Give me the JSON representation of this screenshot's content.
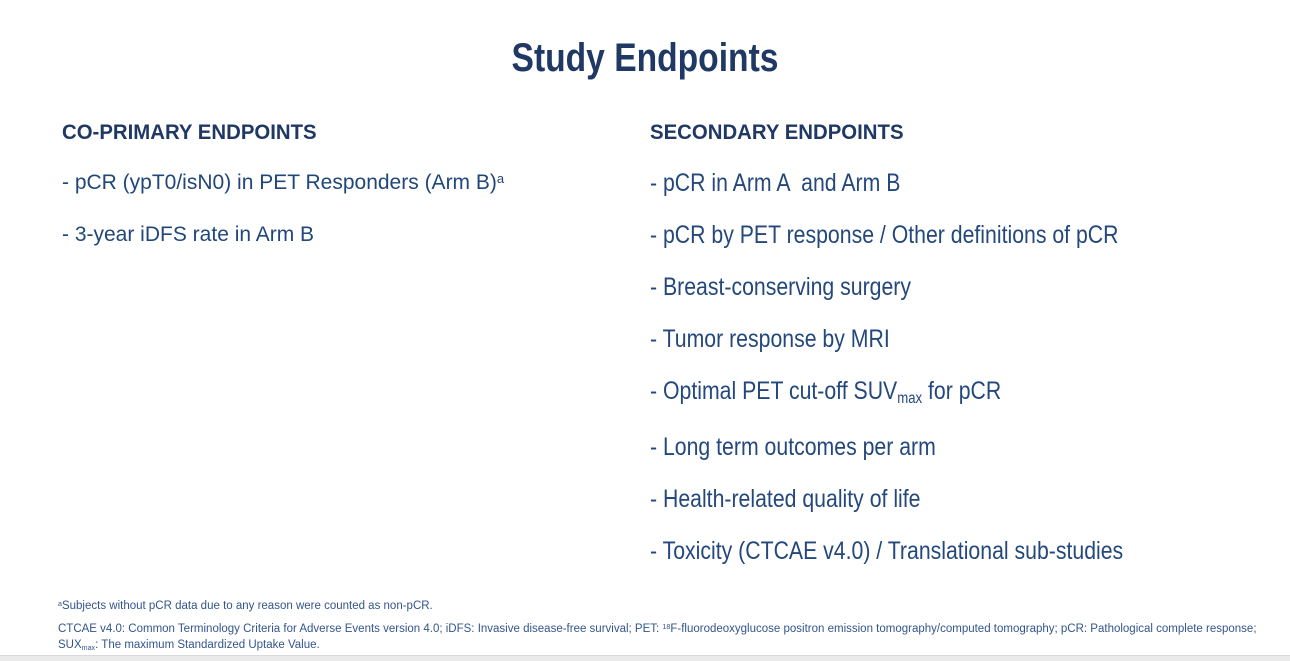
{
  "slide": {
    "title": "Study Endpoints",
    "colors": {
      "heading_navy": "#1F3864",
      "item_navy": "#24487C",
      "footnote_navy": "#33558C",
      "background": "#ffffff"
    },
    "coprimary": {
      "header": "CO-PRIMARY ENDPOINTS",
      "items": [
        {
          "text": "- pCR (ypT0/isN0) in PET Responders (Arm B)",
          "sup": "a"
        },
        {
          "text": "- 3-year iDFS rate in Arm B"
        }
      ]
    },
    "secondary": {
      "header": "SECONDARY ENDPOINTS",
      "items": [
        {
          "text": "- pCR in Arm A  and Arm B"
        },
        {
          "text": "- pCR by PET response / Other definitions of pCR"
        },
        {
          "text": "- Breast-conserving surgery"
        },
        {
          "text": "- Tumor response by MRI"
        },
        {
          "pre": "- Optimal PET cut-off SUV",
          "sub": "max",
          "post": " for pCR"
        },
        {
          "text": "- Long term outcomes per arm"
        },
        {
          "text": "- Health-related quality of life"
        },
        {
          "text": "- Toxicity (CTCAE v4.0) / Translational sub-studies"
        }
      ]
    },
    "footnotes": {
      "note_a": {
        "sup": "a",
        "text": "Subjects without pCR data due to any reason were counted as non-pCR."
      },
      "abbrev": {
        "pre": "CTCAE v4.0: Common Terminology Criteria for Adverse Events version 4.0; iDFS: Invasive disease-free survival; PET: ",
        "sup": "18",
        "mid": "F-fluorodeoxyglucose positron emission tomography/computed tomography; pCR: Pathological complete response; SUX",
        "sub": "max",
        "post": ": The maximum Standardized Uptake Value."
      }
    }
  }
}
